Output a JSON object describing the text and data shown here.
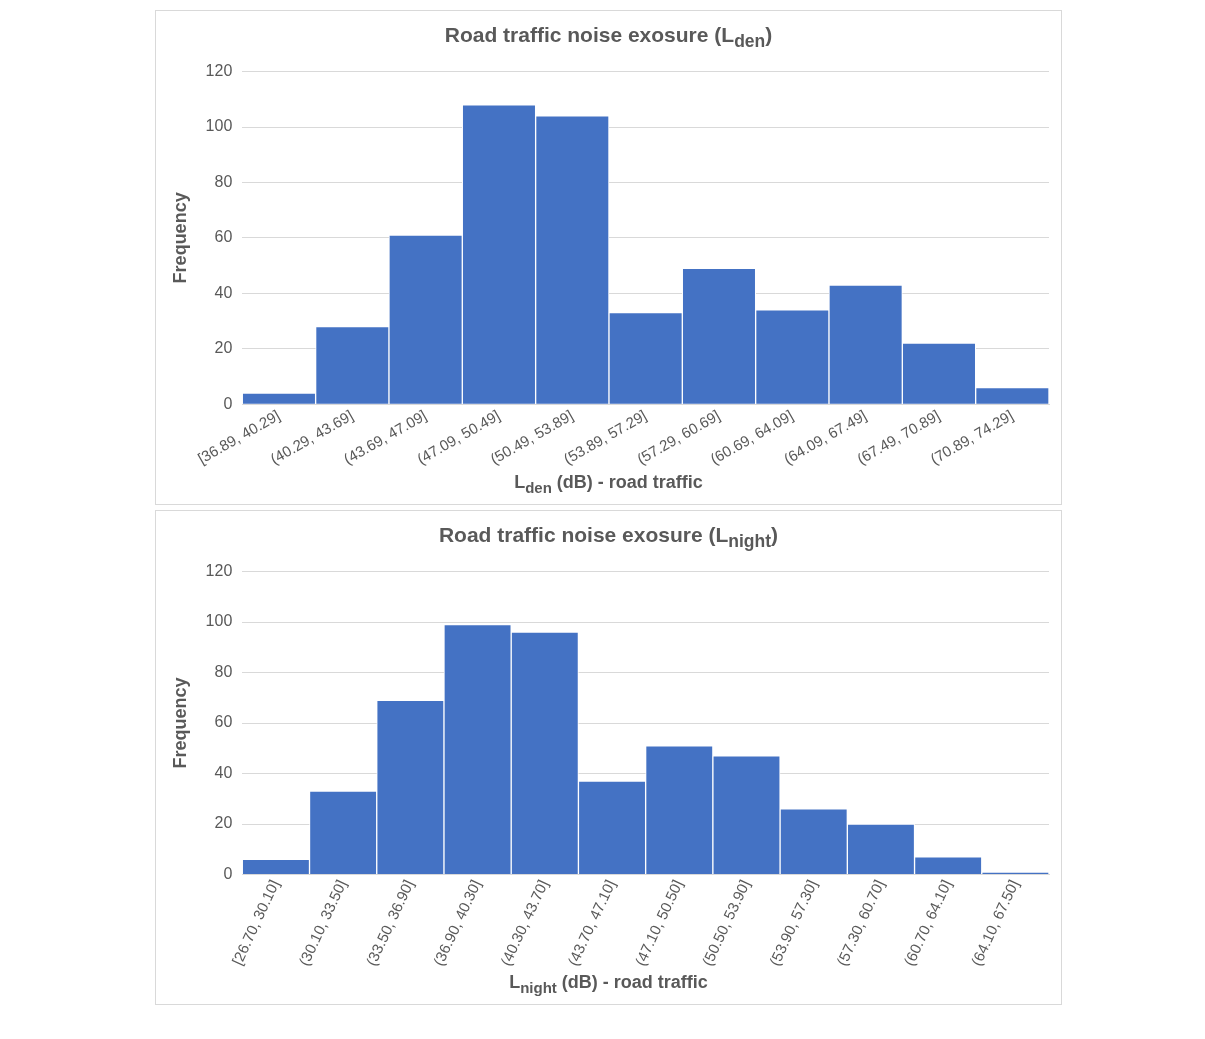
{
  "chart_data": [
    {
      "type": "bar",
      "title": "Road traffic noise exosure (L$_{den}$)",
      "xlabel": "L$_{den}$ (dB) - road traffic",
      "ylabel": "Frequency",
      "categories": [
        "[36.89, 40.29]",
        "(40.29, 43.69]",
        "(43.69, 47.09]",
        "(47.09, 50.49]",
        "(50.49, 53.89]",
        "(53.89, 57.29]",
        "(57.29, 60.69]",
        "(60.69, 64.09]",
        "(64.09, 67.49]",
        "(67.49, 70.89]",
        "(70.89, 74.29]"
      ],
      "values": [
        4,
        28,
        61,
        108,
        104,
        33,
        49,
        34,
        43,
        22,
        6
      ],
      "color": "#4472c4",
      "ylim": [
        0,
        120
      ],
      "yticks": [
        0,
        20,
        40,
        60,
        80,
        100,
        120
      ],
      "grid": "y"
    },
    {
      "type": "bar",
      "title": "Road traffic noise exosure (L$_{night}$)",
      "xlabel": "L$_{night}$ (dB) - road traffic",
      "ylabel": "Frequency",
      "categories": [
        "[26.70, 30.10]",
        "(30.10, 33.50]",
        "(33.50, 36.90]",
        "(36.90, 40.30]",
        "(40.30, 43.70]",
        "(43.70, 47.10]",
        "(47.10, 50.50]",
        "(50.50, 53.90]",
        "(53.90, 57.30]",
        "(57.30, 60.70]",
        "(60.70, 64.10]",
        "(64.10, 67.50]"
      ],
      "values": [
        6,
        33,
        69,
        99,
        96,
        37,
        51,
        47,
        26,
        20,
        7,
        1
      ],
      "color": "#4472c4",
      "ylim": [
        0,
        120
      ],
      "yticks": [
        0,
        20,
        40,
        60,
        80,
        100,
        120
      ],
      "grid": "y"
    }
  ]
}
